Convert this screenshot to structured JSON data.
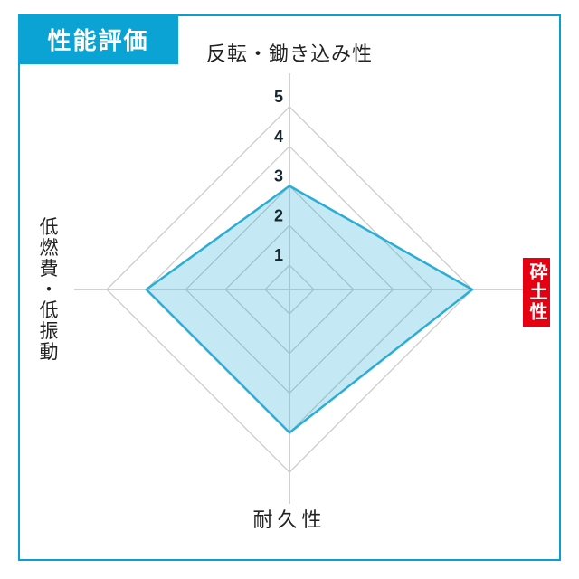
{
  "header": {
    "title": "性能評価",
    "badge_bg": "#0aa3d4",
    "text_color": "#ffffff"
  },
  "page": {
    "border_color": "#0a9fd0",
    "background": "#ffffff"
  },
  "chart_data": {
    "type": "radar",
    "title": "性能評価",
    "axes": [
      {
        "label": "反転・鋤き込み性",
        "position": "top",
        "value": 3,
        "highlighted": false
      },
      {
        "label": "砕土性",
        "position": "right",
        "value": 5,
        "highlighted": true,
        "highlight_bg": "#e60012",
        "highlight_text": "#ffffff"
      },
      {
        "label": "耐久性",
        "position": "bottom",
        "value": 4,
        "highlighted": false
      },
      {
        "label": "低燃費・低振動",
        "position": "left",
        "value": 4,
        "highlighted": false
      }
    ],
    "series": [
      {
        "name": "性能評価",
        "values": [
          3,
          5,
          4,
          4
        ]
      }
    ],
    "scale": {
      "min": 1,
      "max": 5,
      "tick_labels": [
        "1",
        "2",
        "3",
        "4",
        "5"
      ],
      "tick_position": "top-axis"
    },
    "grid": true,
    "legend": "none",
    "style": {
      "fill": "#2aaed6",
      "fill_opacity": 0.28,
      "stroke": "#2aaed6",
      "grid_color": "#c9c9c9",
      "axis_line_color": "#c4c4c4",
      "tick_color": "#17252e"
    }
  }
}
